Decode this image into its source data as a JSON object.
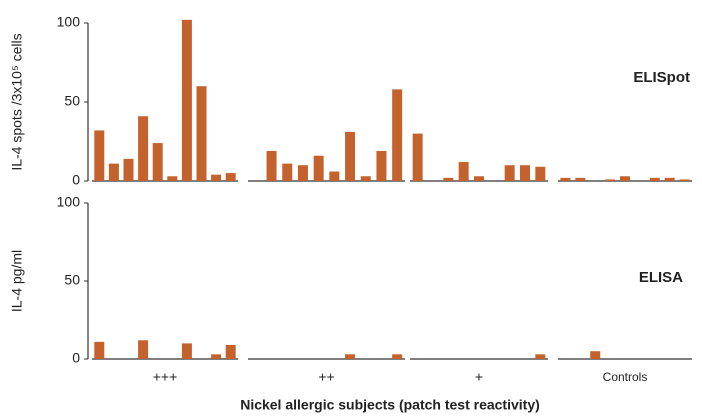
{
  "chart_data": {
    "type": "bar",
    "color": "#c4622d",
    "xlabel": "Nickel allergic subjects (patch test reactivity)",
    "groups": [
      "+++",
      "++",
      "+",
      "Controls"
    ],
    "panels": [
      {
        "label": "ELISpot",
        "ylabel": "IL-4 spots /3x10⁵ cells",
        "ylim": [
          0,
          100
        ],
        "yticks": [
          0,
          50,
          100
        ],
        "values": [
          [
            32,
            11,
            14,
            41,
            24,
            3,
            102,
            60,
            4,
            5
          ],
          [
            0,
            19,
            11,
            10,
            16,
            6,
            31,
            3,
            19,
            58
          ],
          [
            30,
            0,
            2,
            12,
            3,
            0,
            10,
            10,
            9
          ],
          [
            2,
            2,
            0,
            1,
            3,
            0,
            2,
            2,
            1
          ]
        ]
      },
      {
        "label": "ELISA",
        "ylabel": "IL-4 pg/ml",
        "ylim": [
          0,
          100
        ],
        "yticks": [
          0,
          50,
          100
        ],
        "values": [
          [
            11,
            0,
            0,
            12,
            0,
            0,
            10,
            0,
            3,
            9
          ],
          [
            0,
            0,
            0,
            0,
            0,
            0,
            3,
            0,
            0,
            3
          ],
          [
            0,
            0,
            0,
            0,
            0,
            0,
            0,
            0,
            3
          ],
          [
            0,
            0,
            5,
            0,
            0,
            0,
            0,
            0,
            0
          ]
        ]
      }
    ]
  }
}
